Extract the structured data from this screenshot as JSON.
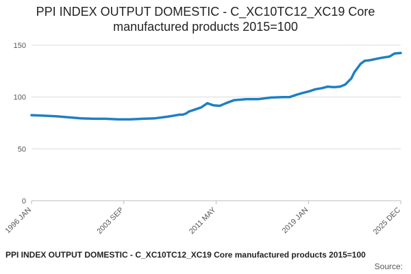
{
  "chart_data": {
    "type": "line",
    "title_line1": "PPI INDEX OUTPUT DOMESTIC - C_XC10TC12_XC19 Core",
    "title_line2": "manufactured products 2015=100",
    "xlabel": "",
    "ylabel": "",
    "ylim": [
      0,
      150
    ],
    "yticks": [
      0,
      50,
      100,
      150
    ],
    "xlim": [
      "1996-01",
      "2025-12"
    ],
    "xticks": [
      "1996 JAN",
      "2003 SEP",
      "2011 MAY",
      "2019 JAN",
      "2025 DEC"
    ],
    "grid": true,
    "legend": "none",
    "series_color": "#1f7fc4",
    "series": [
      {
        "x": [
          "1996-01",
          "1997-01",
          "1998-01",
          "1999-01",
          "2000-01",
          "2001-01",
          "2002-01",
          "2003-01",
          "2004-01",
          "2005-01",
          "2006-01",
          "2007-01",
          "2008-01",
          "2008-04",
          "2008-07",
          "2008-10",
          "2009-04",
          "2009-10",
          "2010-04",
          "2010-10",
          "2011-04",
          "2011-10",
          "2012-06",
          "2013-06",
          "2014-06",
          "2015-06",
          "2016-06",
          "2016-12",
          "2017-06",
          "2018-01",
          "2018-07",
          "2019-01",
          "2019-07",
          "2020-01",
          "2020-07",
          "2021-01",
          "2021-06",
          "2021-12",
          "2022-03",
          "2022-06",
          "2022-09",
          "2023-01",
          "2023-06",
          "2024-01",
          "2024-06",
          "2025-01",
          "2025-06",
          "2025-12"
        ],
        "values": [
          82.5,
          82,
          81.5,
          80.5,
          79.5,
          79,
          79,
          78.5,
          78.5,
          79,
          79.5,
          81,
          83,
          83,
          84,
          86,
          88,
          90,
          94,
          92,
          91.5,
          94,
          97,
          98,
          98,
          99.5,
          100,
          100,
          102,
          104,
          105.5,
          107.5,
          108.5,
          110,
          109.5,
          110,
          112,
          118,
          124,
          128,
          132,
          135,
          135.5,
          137,
          138,
          139,
          142,
          142.5
        ]
      }
    ]
  },
  "footer": {
    "title": "PPI INDEX OUTPUT DOMESTIC - C_XC10TC12_XC19 Core manufactured products 2015=100",
    "source": "Source:"
  }
}
